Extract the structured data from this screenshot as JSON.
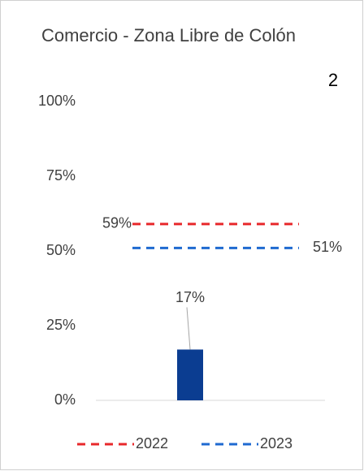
{
  "chart_data": {
    "type": "bar",
    "title": "Comercio - Zona Libre de Colón",
    "annotation": "2",
    "categories": [
      null
    ],
    "values": [
      17
    ],
    "value_labels": [
      "17%"
    ],
    "color": "#0b3d91",
    "series": [
      {
        "name": "2022",
        "color": "#e8282b",
        "values": [
          59
        ],
        "value_labels": [
          "59%"
        ]
      },
      {
        "name": "2023",
        "color": "#1f6ad0",
        "values": [
          51
        ],
        "value_labels": [
          "51%"
        ]
      }
    ],
    "ylim": [
      0,
      100
    ],
    "yticks": [
      {
        "value": 0,
        "label": "0%"
      },
      {
        "value": 25,
        "label": "25%"
      },
      {
        "value": 50,
        "label": "50%"
      },
      {
        "value": 75,
        "label": "75%"
      },
      {
        "value": 100,
        "label": "100%"
      }
    ],
    "legend": "bottom"
  }
}
